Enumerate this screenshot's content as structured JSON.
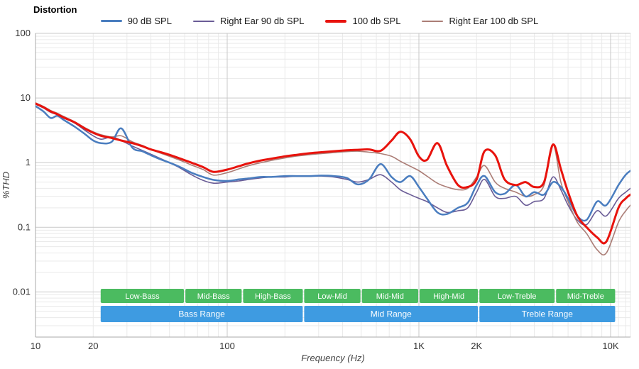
{
  "title": "Distortion",
  "chart_data": {
    "type": "line",
    "title": "Distortion",
    "xlabel": "Frequency (Hz)",
    "ylabel": "%THD",
    "x_scale": "log",
    "y_scale": "log",
    "grid": true,
    "legend_position": "top-center",
    "xlim": [
      10,
      12700
    ],
    "ylim": [
      0.002,
      100
    ],
    "x_ticks": [
      {
        "value": 10,
        "label": "10"
      },
      {
        "value": 20,
        "label": "20"
      },
      {
        "value": 100,
        "label": "100"
      },
      {
        "value": 1000,
        "label": "1K"
      },
      {
        "value": 2000,
        "label": "2K"
      },
      {
        "value": 10000,
        "label": "10K"
      }
    ],
    "y_ticks": [
      {
        "value": 100,
        "label": "100"
      },
      {
        "value": 10,
        "label": "10"
      },
      {
        "value": 1,
        "label": "1"
      },
      {
        "value": 0.1,
        "label": "0.1"
      },
      {
        "value": 0.01,
        "label": "0.01"
      }
    ],
    "x": [
      10,
      11,
      12,
      13,
      14,
      16,
      18,
      20,
      22,
      25,
      28,
      32,
      36,
      40,
      45,
      50,
      57,
      65,
      75,
      85,
      100,
      115,
      130,
      150,
      170,
      200,
      230,
      270,
      310,
      360,
      420,
      480,
      550,
      630,
      720,
      800,
      900,
      1000,
      1100,
      1250,
      1400,
      1600,
      1800,
      2000,
      2200,
      2500,
      2800,
      3200,
      3600,
      4000,
      4500,
      5000,
      5500,
      6000,
      6700,
      7500,
      8500,
      9500,
      11000,
      12000,
      12700
    ],
    "series": [
      {
        "name": "90 dB SPL",
        "color": "#4a7dbf",
        "width": 2.5,
        "values": [
          7.5,
          6.2,
          4.9,
          5.3,
          4.6,
          3.6,
          2.8,
          2.2,
          2.0,
          2.1,
          3.4,
          1.7,
          1.5,
          1.3,
          1.12,
          1.0,
          0.85,
          0.7,
          0.6,
          0.54,
          0.52,
          0.55,
          0.57,
          0.6,
          0.6,
          0.62,
          0.62,
          0.62,
          0.63,
          0.62,
          0.58,
          0.46,
          0.55,
          0.95,
          0.6,
          0.5,
          0.62,
          0.42,
          0.28,
          0.17,
          0.16,
          0.2,
          0.24,
          0.45,
          0.62,
          0.35,
          0.33,
          0.45,
          0.3,
          0.35,
          0.32,
          0.5,
          0.42,
          0.28,
          0.15,
          0.13,
          0.25,
          0.22,
          0.45,
          0.65,
          0.75
        ]
      },
      {
        "name": "Right Ear 90 db SPL",
        "color": "#6a5c96",
        "width": 1.6,
        "values": [
          8.0,
          7.0,
          6.0,
          5.5,
          4.9,
          4.1,
          3.2,
          2.6,
          2.3,
          2.5,
          2.2,
          1.8,
          1.55,
          1.35,
          1.15,
          1.0,
          0.82,
          0.65,
          0.53,
          0.48,
          0.5,
          0.52,
          0.55,
          0.58,
          0.6,
          0.6,
          0.62,
          0.62,
          0.62,
          0.6,
          0.55,
          0.5,
          0.55,
          0.65,
          0.5,
          0.38,
          0.32,
          0.28,
          0.25,
          0.2,
          0.17,
          0.18,
          0.2,
          0.35,
          0.55,
          0.3,
          0.28,
          0.3,
          0.22,
          0.25,
          0.28,
          0.6,
          0.38,
          0.22,
          0.13,
          0.11,
          0.18,
          0.15,
          0.28,
          0.35,
          0.4
        ]
      },
      {
        "name": "100 db SPL",
        "color": "#e8130d",
        "width": 3,
        "values": [
          8.2,
          7.2,
          6.2,
          5.6,
          5.0,
          4.2,
          3.4,
          2.9,
          2.6,
          2.4,
          2.2,
          2.0,
          1.8,
          1.6,
          1.45,
          1.32,
          1.15,
          1.0,
          0.85,
          0.72,
          0.78,
          0.88,
          0.98,
          1.08,
          1.15,
          1.25,
          1.32,
          1.4,
          1.45,
          1.5,
          1.55,
          1.58,
          1.6,
          1.52,
          2.2,
          3.0,
          2.3,
          1.25,
          1.1,
          2.0,
          0.9,
          0.45,
          0.42,
          0.55,
          1.5,
          1.3,
          0.55,
          0.45,
          0.5,
          0.42,
          0.5,
          1.9,
          0.8,
          0.35,
          0.15,
          0.1,
          0.07,
          0.06,
          0.2,
          0.28,
          0.32
        ]
      },
      {
        "name": "Right Ear 100 db SPL",
        "color": "#ab7d76",
        "width": 1.6,
        "values": [
          8.4,
          7.4,
          6.4,
          5.8,
          5.2,
          4.3,
          3.5,
          3.0,
          2.7,
          2.5,
          2.6,
          2.1,
          1.85,
          1.6,
          1.4,
          1.25,
          1.08,
          0.92,
          0.78,
          0.64,
          0.7,
          0.8,
          0.9,
          1.0,
          1.08,
          1.18,
          1.26,
          1.33,
          1.38,
          1.43,
          1.48,
          1.5,
          1.45,
          1.38,
          1.25,
          1.05,
          0.88,
          0.75,
          0.62,
          0.48,
          0.42,
          0.38,
          0.4,
          0.6,
          0.9,
          0.5,
          0.4,
          0.35,
          0.3,
          0.32,
          0.45,
          1.9,
          0.5,
          0.25,
          0.12,
          0.08,
          0.045,
          0.04,
          0.12,
          0.18,
          0.22
        ]
      }
    ],
    "bands": {
      "sub_color": "#4bbb60",
      "main_color": "#3e9be1",
      "sub": [
        {
          "label": "Low-Bass",
          "from": 21.7,
          "to": 60
        },
        {
          "label": "Mid-Bass",
          "from": 60,
          "to": 120
        },
        {
          "label": "High-Bass",
          "from": 120,
          "to": 250
        },
        {
          "label": "Low-Mid",
          "from": 250,
          "to": 500
        },
        {
          "label": "Mid-Mid",
          "from": 500,
          "to": 1000
        },
        {
          "label": "High-Mid",
          "from": 1000,
          "to": 2050
        },
        {
          "label": "Low-Treble",
          "from": 2050,
          "to": 5150
        },
        {
          "label": "Mid-Treble",
          "from": 5150,
          "to": 10650
        }
      ],
      "main": [
        {
          "label": "Bass Range",
          "from": 21.7,
          "to": 250
        },
        {
          "label": "Mid Range",
          "from": 250,
          "to": 2050
        },
        {
          "label": "Treble Range",
          "from": 2050,
          "to": 10650
        }
      ]
    }
  }
}
